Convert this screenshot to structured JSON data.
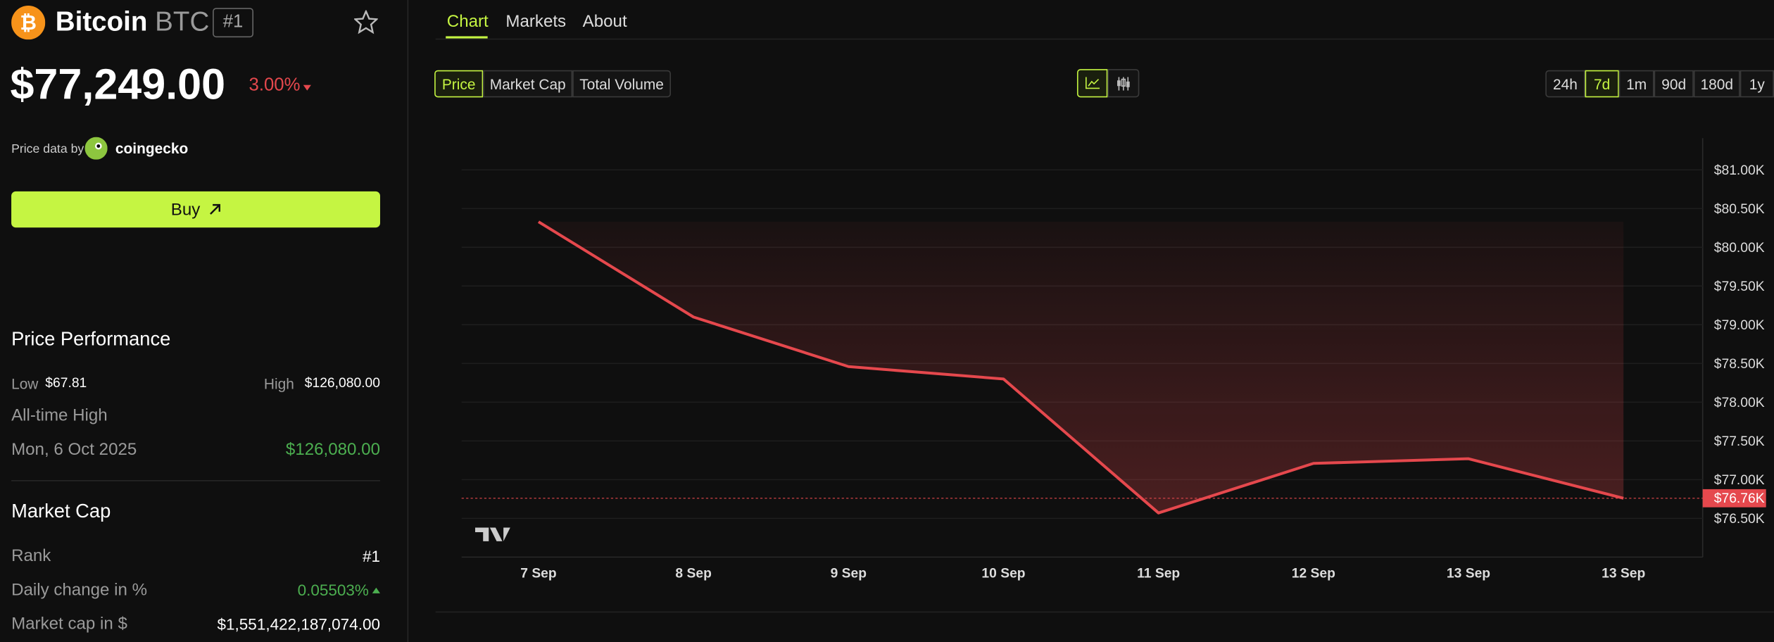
{
  "header": {
    "name": "Bitcoin",
    "symbol": "BTC",
    "rank": "#1",
    "price": "$77,249.00",
    "change": "3.00%",
    "source_label": "Price data by",
    "source": "coingecko",
    "buy": "Buy"
  },
  "performance": {
    "title": "Price Performance",
    "low_label": "Low",
    "low": "$67.81",
    "high_label": "High",
    "high": "$126,080.00",
    "ath_label": "All-time High",
    "ath_date": "Mon, 6 Oct 2025",
    "ath_value": "$126,080.00"
  },
  "market_cap": {
    "title": "Market Cap",
    "rows": [
      [
        "Rank",
        "#1"
      ],
      [
        "Daily change in %",
        "0.05503%"
      ],
      [
        "Market cap in $",
        "$1,551,422,187,074.00"
      ]
    ]
  },
  "tabs": [
    "Chart",
    "Markets",
    "About"
  ],
  "metrics": [
    "Price",
    "Market Cap",
    "Total Volume"
  ],
  "ranges": [
    "24h",
    "7d",
    "1m",
    "90d",
    "180d",
    "1y"
  ],
  "chart_data": {
    "type": "line",
    "categories": [
      "7 Sep",
      "8 Sep",
      "9 Sep",
      "10 Sep",
      "11 Sep",
      "12 Sep",
      "13 Sep",
      "13 Sep"
    ],
    "values": [
      80.33,
      79.1,
      78.46,
      78.3,
      76.57,
      77.21,
      77.27,
      76.76
    ],
    "color": "#e5484d",
    "ylim": [
      76.0,
      81.41
    ],
    "yticks": [
      {
        "value": 76.5,
        "label": "$76.50K"
      },
      {
        "value": 77,
        "label": "$77.00K"
      },
      {
        "value": 77.5,
        "label": "$77.50K"
      },
      {
        "value": 78,
        "label": "$78.00K"
      },
      {
        "value": 78.5,
        "label": "$78.50K"
      },
      {
        "value": 79,
        "label": "$79.00K"
      },
      {
        "value": 79.5,
        "label": "$79.50K"
      },
      {
        "value": 80,
        "label": "$80.00K"
      },
      {
        "value": 80.5,
        "label": "$80.50K"
      },
      {
        "value": 81,
        "label": "$81.00K"
      }
    ],
    "grid": true,
    "last_value": {
      "value": 76.76,
      "label": "$76.76K"
    }
  }
}
